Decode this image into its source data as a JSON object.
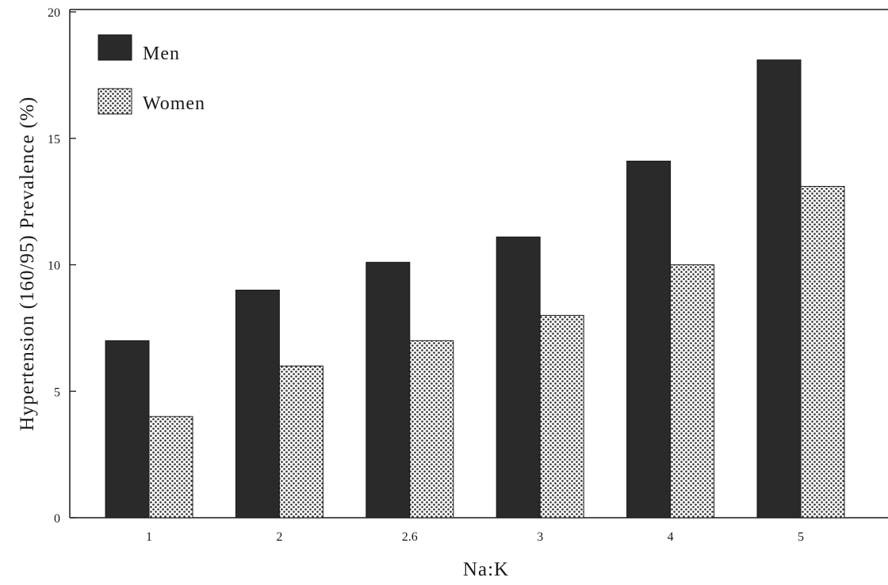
{
  "chart_data": {
    "type": "bar",
    "categories": [
      "1",
      "2",
      "2.6",
      "3",
      "4",
      "5"
    ],
    "series": [
      {
        "name": "Men",
        "values": [
          7.0,
          9.0,
          10.1,
          11.1,
          14.1,
          18.1
        ]
      },
      {
        "name": "Women",
        "values": [
          4.0,
          6.0,
          7.0,
          8.0,
          10.0,
          13.1
        ]
      }
    ],
    "title": "",
    "xlabel": "Na:K",
    "ylabel": "Hypertension (160/95) Prevalence (%)",
    "ylim": [
      0,
      20
    ],
    "yticks": [
      "0",
      "5",
      "10",
      "15",
      "20"
    ],
    "grid": false,
    "legend_position": "top-left"
  },
  "colors": {
    "men": "#2a2a2a",
    "women_pattern_bg": "#ffffff",
    "women_pattern_dot": "#2a2a2a",
    "axis": "#1a1a1a"
  }
}
